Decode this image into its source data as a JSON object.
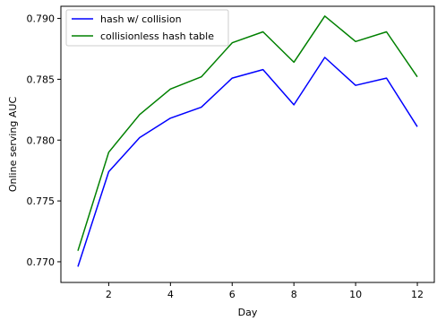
{
  "chart_data": {
    "type": "line",
    "title": "",
    "xlabel": "Day",
    "ylabel": "Online serving AUC",
    "x": [
      1,
      2,
      3,
      4,
      5,
      6,
      7,
      8,
      9,
      10,
      11,
      12
    ],
    "xlim": [
      0.45,
      12.55
    ],
    "ylim": [
      0.7683,
      0.791
    ],
    "xticks": [
      2,
      4,
      6,
      8,
      10,
      12
    ],
    "yticks": [
      "0.770",
      "0.775",
      "0.780",
      "0.785",
      "0.790"
    ],
    "grid": false,
    "legend_position": "upper-left",
    "series": [
      {
        "name": "hash w/ collision",
        "color": "#0000ff",
        "values": [
          0.7696,
          0.7774,
          0.7802,
          0.7818,
          0.7827,
          0.7851,
          0.7858,
          0.7829,
          0.7868,
          0.7845,
          0.7851,
          0.7811
        ]
      },
      {
        "name": "collisionless hash table",
        "color": "#008000",
        "values": [
          0.7709,
          0.779,
          0.7821,
          0.7842,
          0.7852,
          0.788,
          0.7889,
          0.7864,
          0.7902,
          0.7881,
          0.7889,
          0.7852
        ]
      }
    ]
  }
}
